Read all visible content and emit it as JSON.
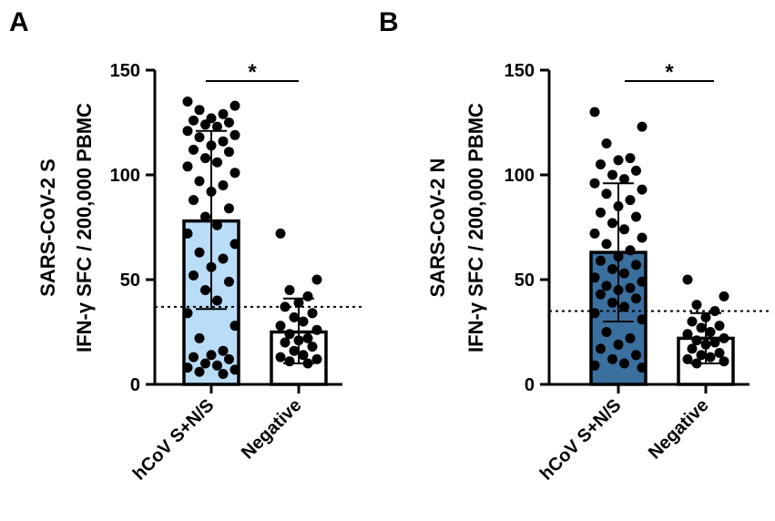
{
  "chart_data": [
    {
      "type": "bar",
      "panel_label": "A",
      "ylabel_line1": "SARS-CoV-2 S",
      "ylabel_line2": "IFN-γ SFC / 200,000 PBMC",
      "ylim": [
        0,
        150
      ],
      "yticks": [
        0,
        50,
        100,
        150
      ],
      "threshold": 37,
      "significance": "*",
      "categories": [
        "hCoV S+N/S",
        "Negative"
      ],
      "bar_colors": [
        "#b9dcf7",
        "#ffffff"
      ],
      "values": [
        78,
        25
      ],
      "sd_upper": [
        121,
        41
      ],
      "sd_lower": [
        36,
        10
      ],
      "points": [
        [
          135,
          133,
          131,
          129,
          127,
          126,
          125,
          124,
          123,
          121,
          119,
          118,
          116,
          114,
          112,
          111,
          108,
          106,
          104,
          101,
          97,
          95,
          92,
          88,
          84,
          80,
          76,
          72,
          67,
          63,
          60,
          56,
          52,
          49,
          45,
          40,
          34,
          28,
          22,
          16,
          14,
          13,
          12,
          10,
          9,
          8,
          7,
          6,
          5
        ],
        [
          72,
          50,
          45,
          42,
          39,
          37,
          34,
          32,
          30,
          28,
          26,
          24,
          22,
          21,
          20,
          18,
          16,
          14,
          13,
          12,
          11,
          10
        ]
      ]
    },
    {
      "type": "bar",
      "panel_label": "B",
      "ylabel_line1": "SARS-CoV-2 N",
      "ylabel_line2": "IFN-γ SFC / 200,000 PBMC",
      "ylim": [
        0,
        150
      ],
      "yticks": [
        0,
        50,
        100,
        150
      ],
      "threshold": 35,
      "significance": "*",
      "categories": [
        "hCoV S+N/S",
        "Negative"
      ],
      "bar_colors": [
        "#3a6f9e",
        "#ffffff"
      ],
      "values": [
        63,
        22
      ],
      "sd_upper": [
        96,
        34
      ],
      "sd_lower": [
        30,
        10
      ],
      "points": [
        [
          130,
          123,
          115,
          108,
          107,
          105,
          102,
          100,
          98,
          96,
          93,
          91,
          88,
          85,
          82,
          80,
          77,
          74,
          72,
          70,
          67,
          64,
          61,
          59,
          57,
          55,
          53,
          51,
          49,
          47,
          46,
          45,
          43,
          41,
          39,
          37,
          34,
          31,
          25,
          22,
          19,
          17,
          14,
          12,
          10,
          9,
          8
        ],
        [
          50,
          42,
          38,
          35,
          32,
          30,
          28,
          27,
          25,
          24,
          22,
          21,
          20,
          19,
          17,
          15,
          14,
          13,
          12,
          11,
          10
        ]
      ]
    }
  ]
}
